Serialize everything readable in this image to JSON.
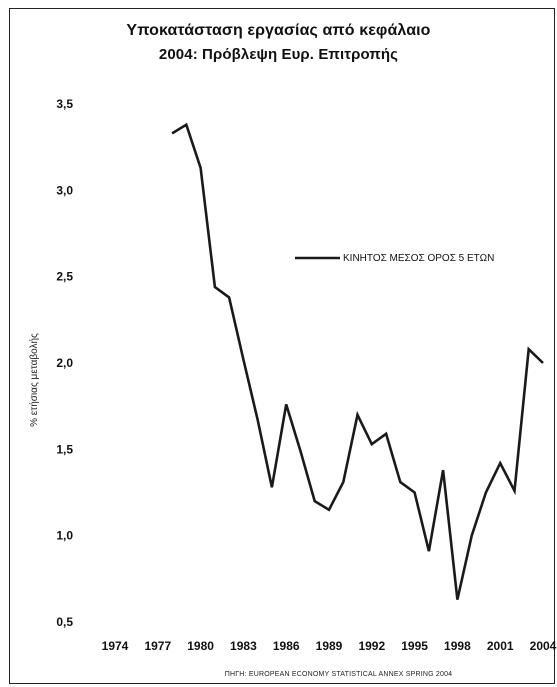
{
  "chart_data": {
    "type": "line",
    "title": "Υποκατάσταση εργασίας από κεφάλαιο",
    "subtitle": "2004: Πρόβλεψη Ευρ. Επιτροπής",
    "ylabel": "% ετήσιας μεταβολής",
    "xlabel": "",
    "ylim": [
      0.5,
      3.5
    ],
    "yticks": [
      "0,5",
      "1,0",
      "1,5",
      "2,0",
      "2,5",
      "3,0",
      "3,5"
    ],
    "xlim": [
      1974,
      2004
    ],
    "xticks": [
      "1974",
      "1977",
      "1980",
      "1983",
      "1986",
      "1989",
      "1992",
      "1995",
      "1998",
      "2001",
      "2004"
    ],
    "grid": false,
    "legend_position": "upper-right",
    "series": [
      {
        "name": "ΚΙΝΗΤΟΣ ΜΕΣΟΣ ΟΡΟΣ 5 ΕΤΩΝ",
        "color": "#1a1a1a",
        "x": [
          1978,
          1979,
          1980,
          1981,
          1982,
          1983,
          1984,
          1985,
          1986,
          1987,
          1988,
          1989,
          1990,
          1991,
          1992,
          1993,
          1994,
          1995,
          1996,
          1997,
          1998,
          1999,
          2000,
          2001,
          2002,
          2003,
          2004
        ],
        "values": [
          3.33,
          3.38,
          3.13,
          2.44,
          2.38,
          2.02,
          1.67,
          1.28,
          1.76,
          1.49,
          1.2,
          1.15,
          1.31,
          1.7,
          1.53,
          1.59,
          1.31,
          1.25,
          0.91,
          1.38,
          0.63,
          1.0,
          1.25,
          1.42,
          1.26,
          2.08,
          2.0
        ]
      }
    ],
    "source": "ΠΗΓΗ: EUROPEAN ECONOMY STATISTICAL ANNEX SPRING 2004"
  }
}
